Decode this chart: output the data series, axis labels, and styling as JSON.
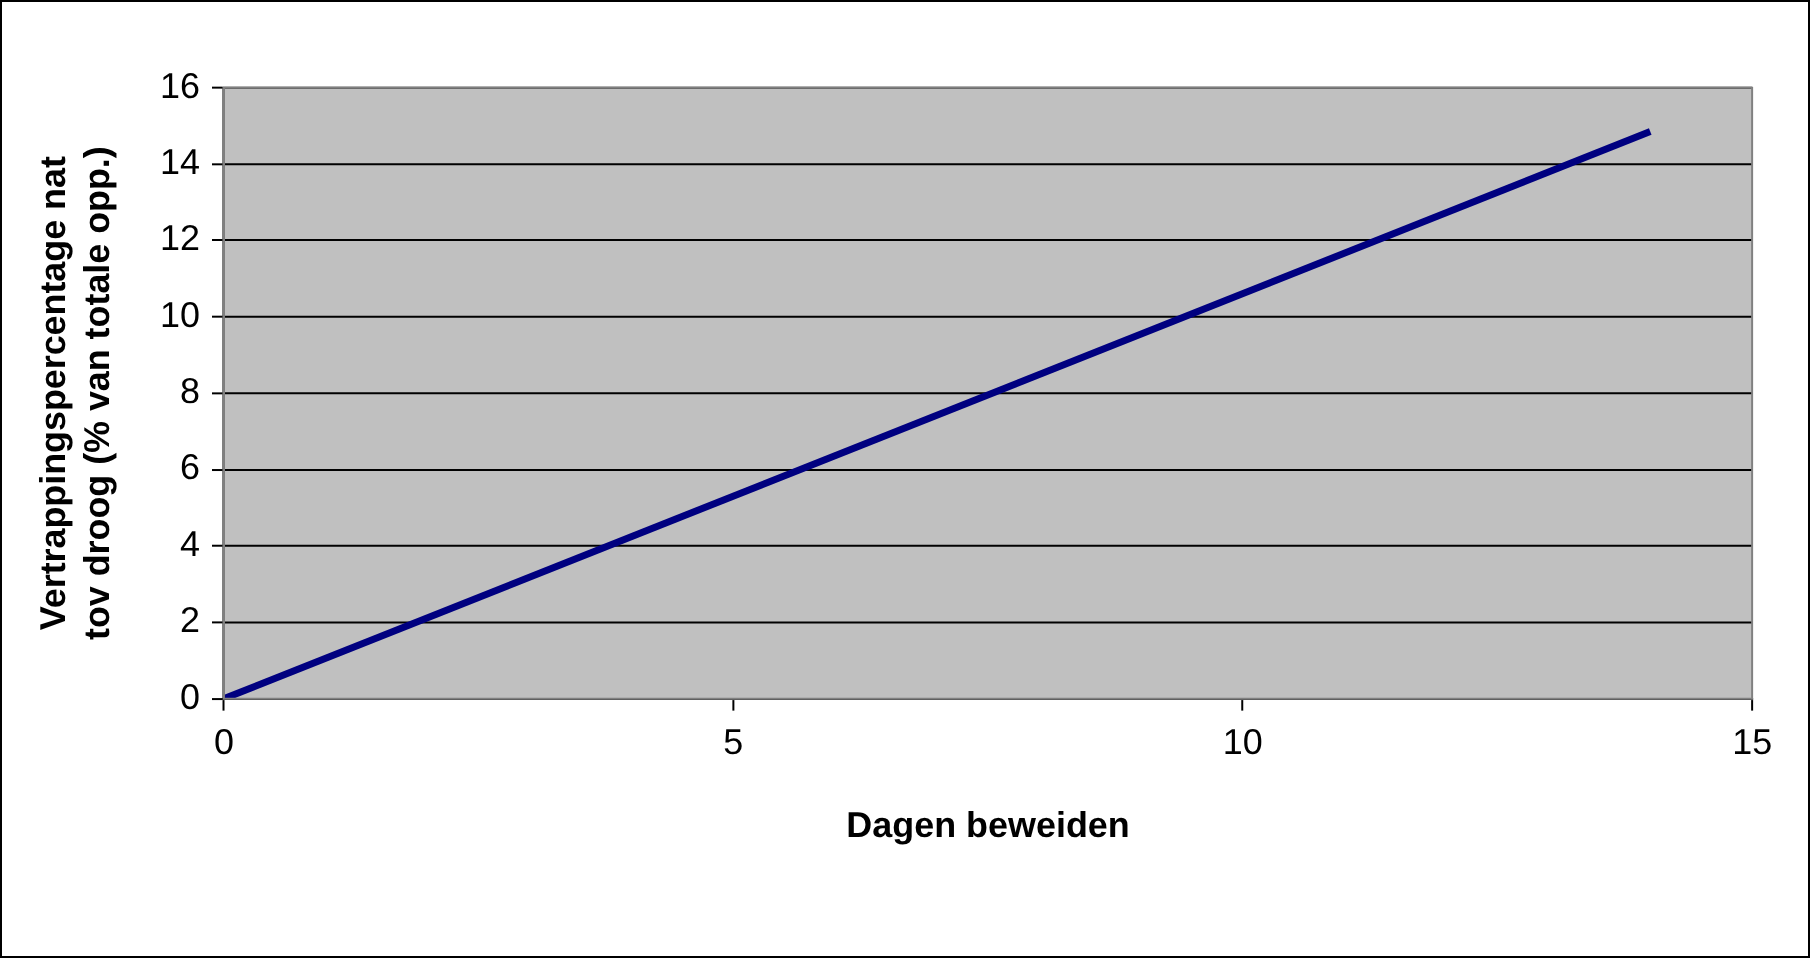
{
  "chart_data": {
    "type": "line",
    "xlabel": "Dagen beweiden",
    "ylabel": "Vertrappingspercentage nat tov droog (% van totale opp.)",
    "x": [
      0,
      14
    ],
    "series": [
      {
        "color": "#000080",
        "values": [
          0,
          14.85
        ]
      }
    ],
    "xlim": [
      0,
      15
    ],
    "xticks": [
      0,
      5,
      10,
      15
    ],
    "ylim": [
      0,
      16
    ],
    "yticks": [
      0,
      2,
      4,
      6,
      8,
      10,
      12,
      14,
      16
    ],
    "grid": "y",
    "legend": false,
    "marker": "none",
    "line_style": "solid"
  }
}
